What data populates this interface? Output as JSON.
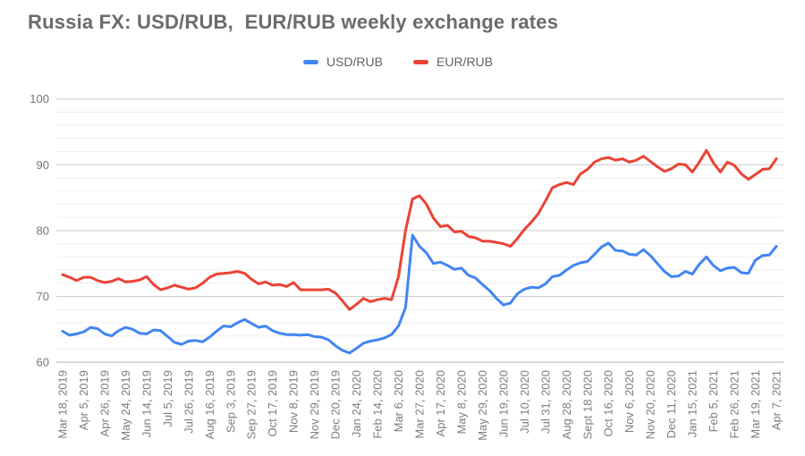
{
  "title": "Russia FX: USD/RUB,  EUR/RUB weekly exchange rates",
  "legend": {
    "position": "top",
    "items": [
      {
        "label": "USD/RUB",
        "color": "#4285f4"
      },
      {
        "label": "EUR/RUB",
        "color": "#ea4335"
      }
    ]
  },
  "chart_data": {
    "type": "line",
    "title": "Russia FX: USD/RUB,  EUR/RUB weekly exchange rates",
    "xlabel": "",
    "ylabel": "",
    "grid": true,
    "legend_position": "top",
    "y_axis": {
      "min": 60,
      "max": 100,
      "major_ticks": [
        100,
        90,
        80,
        70,
        60
      ],
      "minor_step": 2
    },
    "ylim": [
      60,
      100
    ],
    "x_tick_every": 3,
    "x_tick_labels": [
      "Mar 18, 2019",
      "Apr 5, 2019",
      "Apr 26, 2019",
      "May 24, 2019",
      "Jun 14, 2019",
      "Jul 5, 2019",
      "Jul 26, 2019",
      "Aug 16, 2019",
      "Sep 3, 2019",
      "Sep 27, 2019",
      "Oct 17, 2019",
      "Nov 8, 2019",
      "Nov 29, 2019",
      "Dec 20, 2019",
      "Jan 24, 2020",
      "Feb 14, 2020",
      "Mar 6, 2020",
      "Mar 27, 2020",
      "Apr 17, 2020",
      "May 8, 2020",
      "May 29, 2020",
      "Jun 19, 2020",
      "Jul 10, 2020",
      "Jul 31, 2020",
      "Aug 28, 2020",
      "Sept 18 2020",
      "Oct 16, 2020",
      "Nov 6, 2020",
      "Nov 20, 2020",
      "Dec 11, 2020",
      "Jan 15, 2021",
      "Feb 5, 2021",
      "Feb 26, 2021",
      "Mar 19, 2021",
      "Apr 7, 2021"
    ],
    "series": [
      {
        "name": "USD/RUB",
        "key": "usd-rub",
        "color": "#4285f4",
        "values": [
          64.7,
          64.1,
          64.3,
          64.6,
          65.3,
          65.1,
          64.3,
          64.0,
          64.8,
          65.3,
          65.0,
          64.4,
          64.3,
          64.9,
          64.8,
          63.9,
          63.0,
          62.7,
          63.2,
          63.3,
          63.1,
          63.8,
          64.7,
          65.5,
          65.4,
          66.0,
          66.5,
          65.9,
          65.3,
          65.5,
          64.8,
          64.4,
          64.2,
          64.2,
          64.1,
          64.2,
          63.9,
          63.8,
          63.4,
          62.5,
          61.8,
          61.4,
          62.1,
          62.9,
          63.2,
          63.4,
          63.7,
          64.2,
          65.5,
          68.3,
          79.3,
          77.6,
          76.6,
          75.0,
          75.2,
          74.7,
          74.1,
          74.3,
          73.2,
          72.8,
          71.8,
          70.9,
          69.7,
          68.7,
          69.0,
          70.4,
          71.1,
          71.4,
          71.3,
          71.9,
          73.0,
          73.2,
          74.0,
          74.7,
          75.1,
          75.3,
          76.4,
          77.5,
          78.1,
          77.0,
          76.9,
          76.4,
          76.3,
          77.1,
          76.2,
          75.0,
          73.8,
          73.0,
          73.1,
          73.8,
          73.4,
          74.9,
          76.0,
          74.7,
          73.9,
          74.3,
          74.4,
          73.6,
          73.5,
          75.5,
          76.2,
          76.3,
          77.6
        ]
      },
      {
        "name": "EUR/RUB",
        "key": "eur-rub",
        "color": "#ea4335",
        "values": [
          73.3,
          72.9,
          72.4,
          72.9,
          72.9,
          72.4,
          72.1,
          72.3,
          72.7,
          72.2,
          72.3,
          72.5,
          73.0,
          71.8,
          71.0,
          71.3,
          71.7,
          71.4,
          71.1,
          71.3,
          72.0,
          72.9,
          73.4,
          73.5,
          73.6,
          73.8,
          73.5,
          72.6,
          71.9,
          72.2,
          71.7,
          71.8,
          71.5,
          72.1,
          71.0,
          71.0,
          71.0,
          71.0,
          71.1,
          70.5,
          69.3,
          68.0,
          68.8,
          69.7,
          69.2,
          69.5,
          69.7,
          69.5,
          73.0,
          80.0,
          84.8,
          85.3,
          84.0,
          81.9,
          80.6,
          80.8,
          79.8,
          79.9,
          79.1,
          78.9,
          78.4,
          78.4,
          78.2,
          78.0,
          77.6,
          78.8,
          80.2,
          81.3,
          82.6,
          84.5,
          86.5,
          87.0,
          87.3,
          87.0,
          88.6,
          89.3,
          90.4,
          90.9,
          91.1,
          90.7,
          90.9,
          90.4,
          90.7,
          91.3,
          90.5,
          89.7,
          89.0,
          89.4,
          90.1,
          90.0,
          88.9,
          90.4,
          92.2,
          90.3,
          88.9,
          90.4,
          89.9,
          88.6,
          87.8,
          88.5,
          89.3,
          89.4,
          90.9
        ]
      }
    ],
    "colors": {
      "major_gridline": "#cbcbcb",
      "minor_gridline": "#ededed",
      "baseline": "#adadad"
    }
  }
}
